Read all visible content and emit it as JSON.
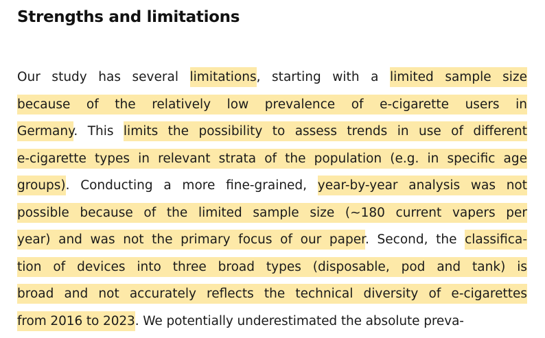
{
  "section": {
    "heading": "Strengths and limitations"
  },
  "colors": {
    "highlight": "#fde9a8",
    "text": "#1a1a1a"
  },
  "lines": [
    [
      {
        "text": "Our study has several ",
        "hl": false
      },
      {
        "text": "limitations",
        "hl": true
      },
      {
        "text": ", starting with a ",
        "hl": false
      },
      {
        "text": "limited sample size",
        "hl": true
      }
    ],
    [
      {
        "text": "because of the relatively low prevalence of e-cigarette users in",
        "hl": true
      }
    ],
    [
      {
        "text": "Germany",
        "hl": true
      },
      {
        "text": ". This ",
        "hl": false
      },
      {
        "text": "limits the possibility to assess trends in use of different",
        "hl": true
      }
    ],
    [
      {
        "text": "e-cigarette types in relevant strata of the population (e.g. in specific age",
        "hl": true
      }
    ],
    [
      {
        "text": "groups)",
        "hl": true
      },
      {
        "text": ". Conducting a more fine-grained, ",
        "hl": false
      },
      {
        "text": "year-by-year analysis was not",
        "hl": true
      }
    ],
    [
      {
        "text": "possible because of the limited sample size (∼180 current vapers per",
        "hl": true
      }
    ],
    [
      {
        "text": "year) and was not the primary focus of our paper",
        "hl": true
      },
      {
        "text": ". Second, the ",
        "hl": false
      },
      {
        "text": "classifica-",
        "hl": true
      }
    ],
    [
      {
        "text": "tion of devices into three broad types (disposable, pod and tank) is",
        "hl": true
      }
    ],
    [
      {
        "text": "broad and not accurately reflects the technical diversity of e-cigarettes",
        "hl": true
      }
    ],
    [
      {
        "text": "from 2016 to 2023",
        "hl": true
      },
      {
        "text": ". We potentially underestimated the absolute preva-",
        "hl": false
      }
    ]
  ]
}
